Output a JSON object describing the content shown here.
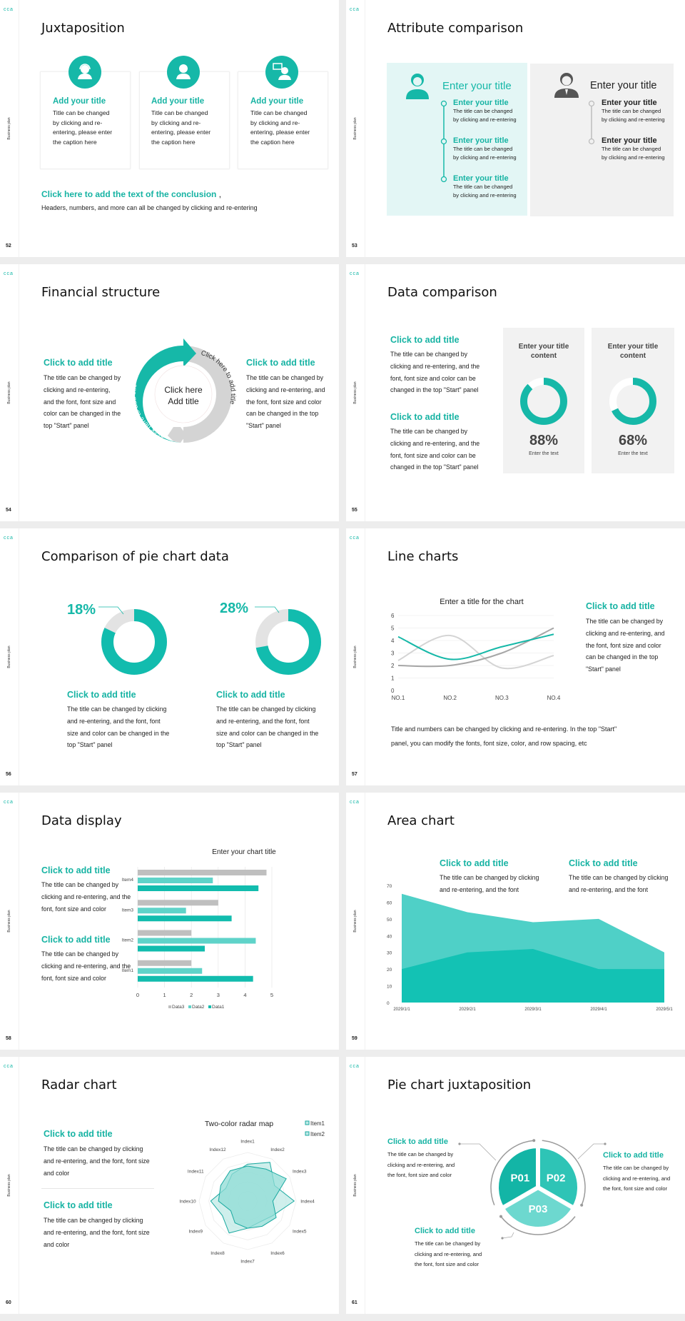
{
  "brand": {
    "logo": "cca",
    "side_label": "Business plan",
    "accent": "#16b8a8",
    "accent_light": "#5fd3c9",
    "gray": "#bfbfbf"
  },
  "slides": [
    {
      "page": "52",
      "title": "Juxtaposition",
      "cards": [
        {
          "icon": "headset-person-icon",
          "title": "Add your title",
          "lines": [
            "Title can be changed",
            "by clicking and re-",
            "entering, please enter",
            "the caption here"
          ]
        },
        {
          "icon": "person-icon",
          "title": "Add your title",
          "lines": [
            "Title can be changed",
            "by clicking and re-",
            "entering, please enter",
            "the caption here"
          ]
        },
        {
          "icon": "person-chat-icon",
          "title": "Add your title",
          "lines": [
            "Title can be changed",
            "by clicking and re-",
            "entering, please enter",
            "the caption here"
          ]
        }
      ],
      "conclusion": {
        "title": "Click here to add the text of the conclusion",
        "comma": ",",
        "body": "Headers, numbers, and more can all be changed by clicking and re-entering"
      }
    },
    {
      "page": "53",
      "title": "Attribute comparison",
      "left": {
        "heading": "Enter your title",
        "items": [
          {
            "title": "Enter your title",
            "lines": [
              "The title can be changed",
              "by clicking and re-entering"
            ]
          },
          {
            "title": "Enter your title",
            "lines": [
              "The title can be changed",
              "by clicking and re-entering"
            ]
          },
          {
            "title": "Enter your title",
            "lines": [
              "The title can be changed",
              "by clicking and re-entering"
            ]
          }
        ]
      },
      "right": {
        "heading": "Enter your title",
        "items": [
          {
            "title": "Enter your title",
            "lines": [
              "The title can be changed",
              "by clicking and re-entering"
            ]
          },
          {
            "title": "Enter your title",
            "lines": [
              "The title can be changed",
              "by clicking and re-entering"
            ]
          }
        ]
      }
    },
    {
      "page": "54",
      "title": "Financial structure",
      "left": {
        "title": "Click to add title",
        "lines": [
          "The title can be changed by",
          "clicking and re-entering,",
          "and the font, font size and",
          "color can be changed in the",
          "top \"Start\" panel"
        ]
      },
      "right": {
        "title": "Click to add title",
        "lines": [
          "The title can be changed by",
          "clicking and re-entering, and",
          "the font, font size and color",
          "can be changed in the top",
          "\"Start\" panel"
        ]
      },
      "ring": {
        "left_arc": "Click here to add title",
        "right_arc": "Click here to add title",
        "center_line1": "Click here",
        "center_line2": "Add title"
      }
    },
    {
      "page": "55",
      "title": "Data comparison",
      "blocks": [
        {
          "title": "Click to add title",
          "lines": [
            "The title can be changed by",
            "clicking and re-entering, and the",
            "font, font size and color can be",
            "changed in the top \"Start\" panel"
          ]
        },
        {
          "title": "Click to add title",
          "lines": [
            "The title can be changed by",
            "clicking and re-entering, and the",
            "font, font size and color can be",
            "changed in the top \"Start\" panel"
          ]
        }
      ],
      "panels": [
        {
          "title1": "Enter your title",
          "title2": "content",
          "percent": 88,
          "label": "88%",
          "caption": "Enter the text"
        },
        {
          "title1": "Enter your title",
          "title2": "content",
          "percent": 68,
          "label": "68%",
          "caption": "Enter the text"
        }
      ]
    },
    {
      "page": "56",
      "title": "Comparison of pie chart data",
      "pies": [
        {
          "percent": 18,
          "label": "18%",
          "title": "Click to add title",
          "lines": [
            "The title can be changed by clicking",
            "and re-entering, and the font, font",
            "size and color can be changed in the",
            "top \"Start\" panel"
          ]
        },
        {
          "percent": 28,
          "label": "28%",
          "title": "Click to add title",
          "lines": [
            "The title can be changed by clicking",
            "and re-entering, and the font, font",
            "size and color can be changed in the",
            "top \"Start\" panel"
          ]
        }
      ]
    },
    {
      "page": "57",
      "title": "Line charts",
      "side": {
        "title": "Click to add title",
        "lines": [
          "The title can be changed by",
          "clicking and re-entering, and",
          "the font, font size and color",
          "can be changed in the top",
          "\"Start\" panel"
        ]
      },
      "footer": [
        "Title and numbers can be changed by clicking and re-entering. In the top \"Start\"",
        "panel, you can modify the fonts, font size, color, and row spacing, etc"
      ]
    },
    {
      "page": "58",
      "title": "Data display",
      "blocks": [
        {
          "title": "Click to add title",
          "lines": [
            "The title can be changed by",
            "clicking and re-entering, and the",
            "font, font size and color"
          ]
        },
        {
          "title": "Click to add title",
          "lines": [
            "The title can be changed by",
            "clicking and re-entering, and the",
            "font, font size and color"
          ]
        }
      ]
    },
    {
      "page": "59",
      "title": "Area chart",
      "blocks": [
        {
          "title": "Click to add title",
          "lines": [
            "The title can be changed by clicking",
            "and re-entering, and the font"
          ]
        },
        {
          "title": "Click to add title",
          "lines": [
            "The title can be changed by clicking",
            "and re-entering, and the font"
          ]
        }
      ]
    },
    {
      "page": "60",
      "title": "Radar chart",
      "blocks": [
        {
          "title": "Click to add title",
          "lines": [
            "The title can be changed by clicking",
            "and re-entering, and the font, font size",
            "and color"
          ]
        },
        {
          "title": "Click to add title",
          "lines": [
            "The title can be changed by clicking",
            "and re-entering, and the font, font size",
            "and color"
          ]
        }
      ]
    },
    {
      "page": "61",
      "title": "Pie chart juxtaposition",
      "segments": [
        "P01",
        "P02",
        "P03"
      ],
      "blocks": [
        {
          "title": "Click to add title",
          "lines": [
            "The title can be changed by",
            "clicking and re-entering, and",
            "the font, font size and color"
          ]
        },
        {
          "title": "Click to add title",
          "lines": [
            "The title can be changed by",
            "clicking and re-entering, and",
            "the font, font size and color"
          ]
        },
        {
          "title": "Click to add title",
          "lines": [
            "The title can be changed by",
            "clicking and re-entering, and",
            "the font, font size and color"
          ]
        }
      ]
    }
  ],
  "chart_data": [
    {
      "type": "line",
      "title": "Enter a title for the chart",
      "categories": [
        "NO.1",
        "NO.2",
        "NO.3",
        "NO.4"
      ],
      "yticks": [
        "0",
        "1",
        "2",
        "3",
        "4",
        "5",
        "6"
      ],
      "ylim": [
        0,
        6
      ],
      "grid": true,
      "smooth": true,
      "series": [
        {
          "color": "#16b8a8",
          "values": [
            4.3,
            2.5,
            3.5,
            4.5
          ]
        },
        {
          "color": "#a6a6a6",
          "values": [
            2.0,
            2.0,
            3.0,
            5.0
          ]
        },
        {
          "color": "#d4d4d4",
          "values": [
            2.4,
            4.4,
            1.8,
            2.8
          ]
        }
      ]
    },
    {
      "type": "bar",
      "orientation": "horizontal",
      "title": "Enter your chart title",
      "categories": [
        "Item1",
        "Item2",
        "Item3",
        "Item4"
      ],
      "xticks": [
        "0",
        "1",
        "2",
        "3",
        "4",
        "5"
      ],
      "xlim": [
        0,
        5
      ],
      "grid": true,
      "legend": "bottom",
      "series": [
        {
          "name": "Data3",
          "color": "#bfbfbf",
          "values": [
            2,
            2,
            3,
            4.8
          ]
        },
        {
          "name": "Data2",
          "color": "#5fd3c9",
          "values": [
            2.4,
            4.4,
            1.8,
            2.8
          ]
        },
        {
          "name": "Data1",
          "color": "#12bcae",
          "values": [
            4.3,
            2.5,
            3.5,
            4.5
          ]
        }
      ]
    },
    {
      "type": "area",
      "x": [
        "2029/1/1",
        "2029/2/1",
        "2029/3/1",
        "2029/4/1",
        "2029/5/1"
      ],
      "yticks": [
        "0",
        "10",
        "20",
        "30",
        "40",
        "50",
        "60",
        "70"
      ],
      "ylim": [
        0,
        70
      ],
      "grid": false,
      "series": [
        {
          "color": "#4fd0c7",
          "values": [
            65,
            54,
            48,
            50,
            30
          ]
        },
        {
          "color": "#13c2b4",
          "values": [
            20,
            30,
            32,
            20,
            20
          ]
        }
      ]
    },
    {
      "type": "radar",
      "title": "Two-color radar map",
      "legend": "top-right",
      "axes": [
        "Index1",
        "Index2",
        "Index3",
        "Index4",
        "Index5",
        "Index6",
        "Index7",
        "Index8",
        "Index9",
        "Index10",
        "Index11",
        "Index12"
      ],
      "rmax": 5,
      "series": [
        {
          "name": "Item1",
          "color": "#1aa9a0",
          "fill": "#bfe9e6",
          "values": [
            3.8,
            4.6,
            3.2,
            4.8,
            3.0,
            2.5,
            2.8,
            3.8,
            3.0,
            3.8,
            2.6,
            3.2
          ]
        },
        {
          "name": "Item2",
          "color": "#1aa9a0",
          "fill": "#8fdcd6",
          "values": [
            3.6,
            3.8,
            4.6,
            2.6,
            3.4,
            3.0,
            2.8,
            2.6,
            2.0,
            3.0,
            3.2,
            3.6
          ]
        }
      ]
    }
  ]
}
